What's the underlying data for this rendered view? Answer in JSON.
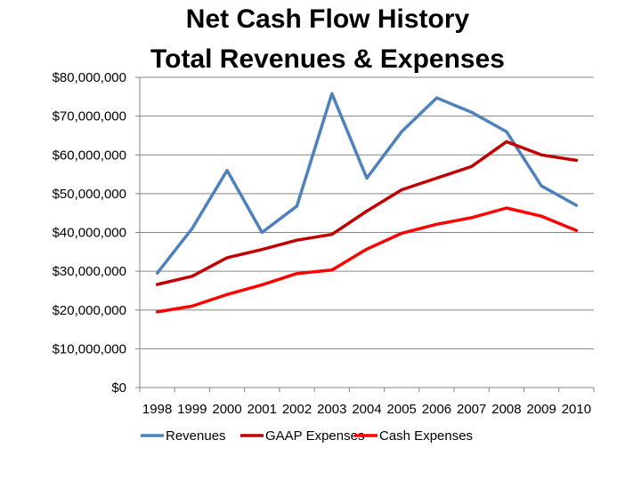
{
  "chart_data": {
    "type": "line",
    "title": "Net Cash Flow History",
    "subtitle": "Total Revenues & Expenses",
    "categories": [
      "1998",
      "1999",
      "2000",
      "2001",
      "2002",
      "2003",
      "2004",
      "2005",
      "2006",
      "2007",
      "2008",
      "2009",
      "2010"
    ],
    "ylim": [
      0,
      80000000
    ],
    "yticks": [
      0,
      10000000,
      20000000,
      30000000,
      40000000,
      50000000,
      60000000,
      70000000,
      80000000
    ],
    "ytick_labels": [
      "$0",
      "$10,000,000",
      "$20,000,000",
      "$30,000,000",
      "$40,000,000",
      "$50,000,000",
      "$60,000,000",
      "$70,000,000",
      "$80,000,000"
    ],
    "grid": true,
    "legend_position": "bottom",
    "series": [
      {
        "name": "Revenues",
        "color": "#4F81BD",
        "values": [
          29500000,
          41000000,
          56000000,
          40000000,
          46800000,
          75800000,
          54000000,
          66000000,
          74700000,
          71000000,
          66000000,
          52000000,
          47000000
        ]
      },
      {
        "name": "GAAP Expenses",
        "color": "#C00000",
        "values": [
          26600000,
          28700000,
          33500000,
          35600000,
          38000000,
          39500000,
          45500000,
          51000000,
          54000000,
          57000000,
          63400000,
          60000000,
          58600000
        ]
      },
      {
        "name": "Cash Expenses",
        "color": "#FF0000",
        "values": [
          19500000,
          21000000,
          24000000,
          26500000,
          29400000,
          30300000,
          35700000,
          39800000,
          42100000,
          43800000,
          46300000,
          44200000,
          40500000
        ]
      }
    ]
  }
}
